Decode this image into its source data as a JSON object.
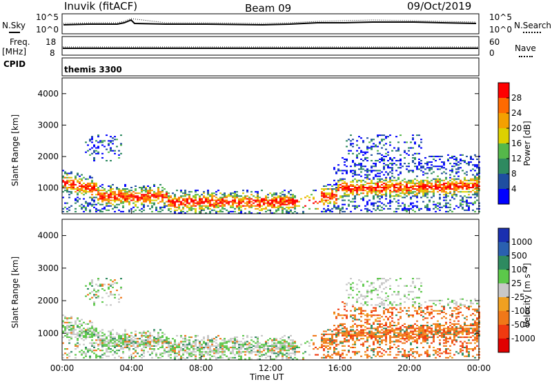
{
  "header": {
    "station": "Inuvik (fitACF)",
    "beam": "Beam 09",
    "date": "09/Oct/2019"
  },
  "side_labels": {
    "nsky": "N.Sky",
    "freq": "Freq.",
    "freq_unit": "[MHz]",
    "cpid": "CPID",
    "nsearch": "N.Search",
    "nave": "Nave",
    "mode": "themis 3300"
  },
  "strip_ticks": {
    "noise_left": [
      "10^5",
      "10^0"
    ],
    "noise_right": [
      "10^5",
      "10^0"
    ],
    "freq_left": [
      "18",
      "8"
    ],
    "nave_right": [
      "60",
      "0"
    ]
  },
  "chart_data": [
    {
      "type": "heatmap",
      "panel": "power",
      "ylabel": "Slant Range [km]",
      "xlabel": "",
      "ylim": [
        180,
        4500
      ],
      "yticks": [
        "1000",
        "2000",
        "3000",
        "4000"
      ],
      "colorbar_label": "Power [dB]",
      "colorbar_ticks": [
        "28",
        "24",
        "20",
        "16",
        "12",
        "8",
        "4"
      ],
      "colorbar_colors": [
        "#ff0000",
        "#ff6a00",
        "#f4a000",
        "#dcd000",
        "#55b84a",
        "#2e8a60",
        "#1f4ea0",
        "#0000ff"
      ]
    },
    {
      "type": "heatmap",
      "panel": "velocity",
      "ylabel": "Slant Range [km]",
      "xlabel": "Time UT",
      "ylim": [
        180,
        4500
      ],
      "xlim": [
        "00:00",
        "24:00"
      ],
      "xticks": [
        "00:00",
        "04:00",
        "08:00",
        "12:00",
        "16:00",
        "20:00",
        "00:00"
      ],
      "yticks": [
        "1000",
        "2000",
        "3000",
        "4000"
      ],
      "colorbar_label": "Velocity [m s⁻¹]",
      "colorbar_ticks": [
        "1000",
        "500",
        "100",
        "25",
        "-25",
        "-100",
        "-500",
        "-1000"
      ],
      "colorbar_colors": [
        "#1a2fb0",
        "#2a60b0",
        "#2e8a60",
        "#5cc84a",
        "#c8c8c8",
        "#f0a020",
        "#f07818",
        "#f03a10",
        "#e00000"
      ]
    }
  ]
}
